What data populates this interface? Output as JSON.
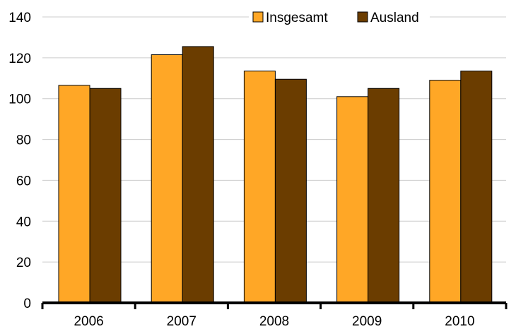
{
  "chart_data": {
    "type": "bar",
    "categories": [
      "2006",
      "2007",
      "2008",
      "2009",
      "2010"
    ],
    "series": [
      {
        "name": "Insgesamt",
        "color": "#FFA726",
        "values": [
          106.5,
          121.5,
          113.5,
          101,
          109
        ]
      },
      {
        "name": "Ausland",
        "color": "#6B3D00",
        "values": [
          105,
          125.5,
          109.5,
          105,
          113.5
        ]
      }
    ],
    "ylim": [
      0,
      140
    ],
    "yticks": [
      "0",
      "20",
      "40",
      "60",
      "80",
      "100",
      "120",
      "140"
    ],
    "grid": true,
    "legend": "top-right"
  }
}
